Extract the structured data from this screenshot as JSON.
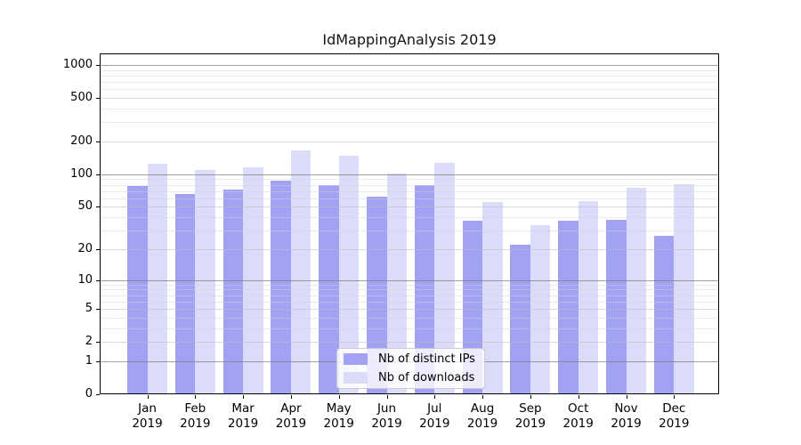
{
  "colors": {
    "ips_bar": "#a2a2f5",
    "downloads_bar": "#dbdbfa",
    "grid_minor": "#e9e9e9",
    "grid_major": "#dedede",
    "grid_power10": "#a7a7a7",
    "axis": "#000000",
    "legend_border": "#cccccc",
    "background": "#ffffff"
  },
  "chart_data": {
    "type": "bar",
    "title": "IdMappingAnalysis 2019",
    "categories": [
      "Jan",
      "Feb",
      "Mar",
      "Apr",
      "May",
      "Jun",
      "Jul",
      "Aug",
      "Sep",
      "Oct",
      "Nov",
      "Dec"
    ],
    "x_sublabel": "2019",
    "series": [
      {
        "name": "Nb of distinct IPs",
        "color": "#a2a2f5",
        "values": [
          78,
          66,
          73,
          87,
          80,
          62,
          79,
          37,
          22,
          37,
          38,
          27
        ]
      },
      {
        "name": "Nb of downloads",
        "color": "#dbdbfa",
        "values": [
          124,
          110,
          115,
          165,
          148,
          101,
          127,
          55,
          34,
          57,
          75,
          81
        ]
      }
    ],
    "yscale": "log1p",
    "ylim": [
      0,
      1001
    ],
    "yticks": [
      0,
      1,
      2,
      5,
      10,
      20,
      50,
      100,
      200,
      500,
      1000
    ],
    "minor_yticks": [
      3,
      4,
      6,
      7,
      8,
      9,
      30,
      40,
      60,
      70,
      80,
      90,
      300,
      400,
      600,
      700,
      800,
      900
    ],
    "grid": "on",
    "legend_position": "lower center"
  }
}
